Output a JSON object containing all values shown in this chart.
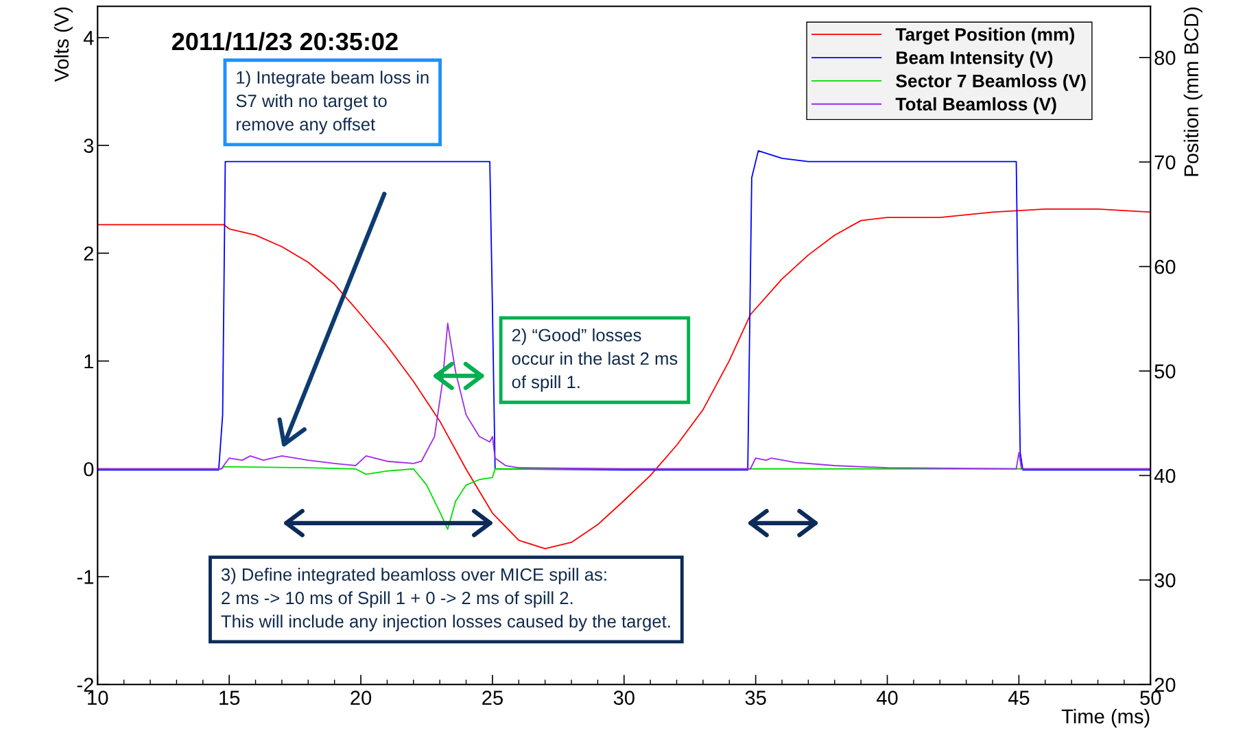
{
  "chart_data": {
    "type": "line",
    "title": "2011/11/23 20:35:02",
    "xlabel": "Time (ms)",
    "ylabel": "Volts (V)",
    "y2label": "Position (mm BCD)",
    "xlim": [
      10,
      50
    ],
    "xticks": [
      10,
      15,
      20,
      25,
      30,
      35,
      40,
      45,
      50
    ],
    "ylim": [
      -2,
      4.29
    ],
    "yticks": [
      -2,
      -1,
      0,
      1,
      2,
      3,
      4
    ],
    "y2lim": [
      20,
      84.9
    ],
    "y2ticks": [
      20,
      30,
      40,
      50,
      60,
      70,
      80
    ],
    "legend": "top right",
    "grid": false,
    "annotations": [
      "1) Integrate beam loss in\nS7 with no target to\nremove any offset",
      "2) “Good” losses\noccur in the last 2 ms\nof spill 1.",
      "3) Define integrated beamloss over MICE spill as:\n2 ms -> 10 ms of Spill 1 + 0 -> 2 ms of spill 2.\nThis will include any injection losses caused by the target."
    ],
    "series": [
      {
        "name": "Target Position (mm)",
        "color": "#ff0000",
        "axis": "y2",
        "x": [
          10,
          12,
          14,
          14.8,
          15,
          16,
          17,
          18,
          19,
          20,
          21,
          22,
          23,
          24,
          25,
          26,
          27,
          28,
          29,
          30,
          31,
          32,
          33,
          34,
          34.8,
          36,
          37,
          38,
          39,
          40,
          42,
          44,
          46,
          48,
          50
        ],
        "values": [
          64.0,
          64.0,
          64.0,
          64.0,
          63.6,
          63.0,
          61.9,
          60.4,
          58.3,
          55.4,
          52.4,
          49.0,
          45.2,
          40.6,
          36.4,
          33.8,
          33.0,
          33.6,
          35.3,
          37.6,
          40.0,
          42.9,
          46.3,
          51.0,
          55.4,
          58.8,
          61.1,
          63.0,
          64.4,
          64.7,
          64.7,
          65.2,
          65.5,
          65.5,
          65.2
        ]
      },
      {
        "name": "Beam Intensity (V)",
        "color": "#0000ff",
        "x": [
          10,
          14.6,
          14.75,
          14.85,
          15.0,
          20,
          24.9,
          25.0,
          25.1,
          30,
          34.7,
          34.85,
          35.1,
          36,
          37,
          40,
          44.9,
          45.0,
          45.05,
          45.15,
          50
        ],
        "values": [
          -0.01,
          -0.01,
          0.5,
          2.85,
          2.85,
          2.85,
          2.85,
          1.5,
          0.0,
          -0.01,
          -0.01,
          2.7,
          2.95,
          2.88,
          2.85,
          2.85,
          2.85,
          1.0,
          0.15,
          -0.01,
          -0.01
        ]
      },
      {
        "name": "Sector 7 Beamloss (V)",
        "color": "#00dd00",
        "x": [
          10,
          14.7,
          14.8,
          18,
          19.8,
          20.2,
          21,
          22,
          22.5,
          23.0,
          23.3,
          23.6,
          24,
          24.5,
          25.0,
          25.1,
          30,
          35,
          40,
          50
        ],
        "values": [
          0.0,
          0.0,
          0.02,
          0.01,
          0.0,
          -0.05,
          -0.02,
          0.0,
          -0.15,
          -0.4,
          -0.56,
          -0.3,
          -0.15,
          -0.1,
          -0.08,
          0.0,
          0.0,
          0.0,
          0.0,
          0.0
        ]
      },
      {
        "name": "Total Beamloss (V)",
        "color": "#9d2bea",
        "x": [
          10,
          14.7,
          15.0,
          15.5,
          15.8,
          16.3,
          17.0,
          18,
          19,
          19.8,
          20.2,
          21,
          22,
          22.3,
          22.8,
          23.1,
          23.3,
          23.6,
          24,
          24.5,
          24.9,
          25.0,
          25.1,
          25.5,
          26,
          30,
          34.8,
          35.0,
          35.4,
          35.6,
          36.5,
          38,
          40,
          44.9,
          45.0,
          45.1,
          50
        ],
        "values": [
          0.0,
          0.0,
          0.1,
          0.08,
          0.12,
          0.08,
          0.12,
          0.08,
          0.05,
          0.03,
          0.12,
          0.07,
          0.05,
          0.07,
          0.3,
          0.8,
          1.35,
          0.9,
          0.5,
          0.3,
          0.25,
          0.3,
          0.1,
          0.03,
          0.01,
          0.0,
          0.0,
          0.1,
          0.08,
          0.1,
          0.06,
          0.03,
          0.01,
          0.0,
          0.15,
          0.0,
          0.0
        ]
      }
    ]
  }
}
